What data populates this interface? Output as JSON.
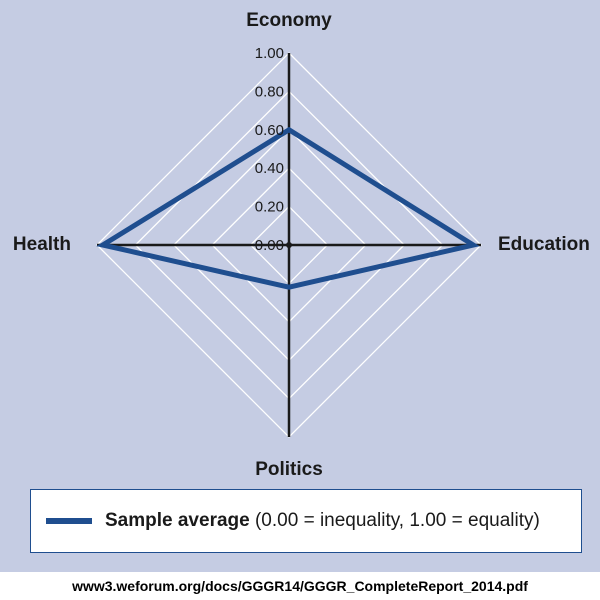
{
  "chart_data": {
    "type": "radar",
    "axes": [
      "Economy",
      "Education",
      "Politics",
      "Health"
    ],
    "r_ticks": [
      "0.00",
      "0.20",
      "0.40",
      "0.60",
      "0.80",
      "1.00"
    ],
    "rlim": [
      0,
      1
    ],
    "grid": true,
    "series": [
      {
        "name": "Sample average",
        "values": [
          0.6,
          0.96,
          0.22,
          0.97
        ],
        "color": "#1f4e8f"
      }
    ],
    "legend": {
      "position": "bottom",
      "series_label": "Sample average",
      "note": "(0.00 = inequality, 1.00 = equality)"
    }
  },
  "colors": {
    "background": "#c5cce3",
    "grid": "#ffffff",
    "axis": "#1a1a1a",
    "series": "#1f4e8f"
  },
  "source": "www3.weforum.org/docs/GGGR14/GGGR_CompleteReport_2014.pdf"
}
